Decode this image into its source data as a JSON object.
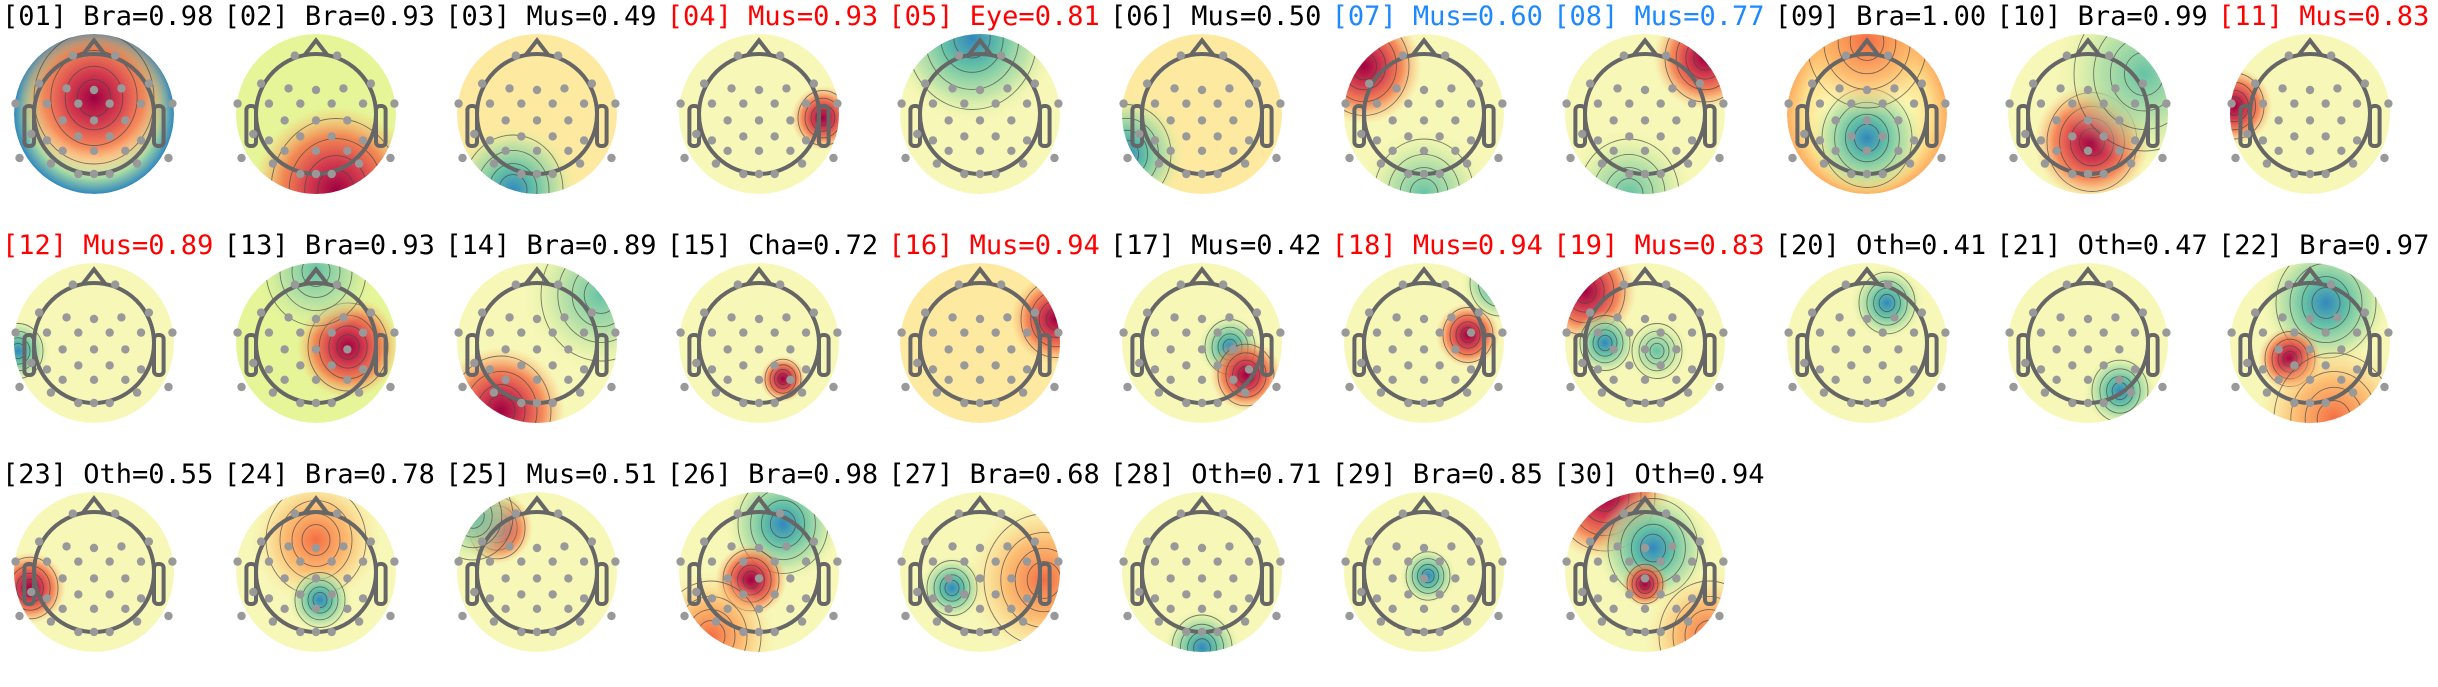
{
  "components": [
    {
      "label": "[01] Bra=0.98",
      "color": "#000000"
    },
    {
      "label": "[02] Bra=0.93",
      "color": "#000000"
    },
    {
      "label": "[03] Mus=0.49",
      "color": "#000000"
    },
    {
      "label": "[04] Mus=0.93",
      "color": "#ff0000"
    },
    {
      "label": "[05] Eye=0.81",
      "color": "#ff0000"
    },
    {
      "label": "[06] Mus=0.50",
      "color": "#000000"
    },
    {
      "label": "[07] Mus=0.60",
      "color": "#1e88ff"
    },
    {
      "label": "[08] Mus=0.77",
      "color": "#1e88ff"
    },
    {
      "label": "[09] Bra=1.00",
      "color": "#000000"
    },
    {
      "label": "[10] Bra=0.99",
      "color": "#000000"
    },
    {
      "label": "[11] Mus=0.83",
      "color": "#ff0000"
    },
    {
      "label": "[12] Mus=0.89",
      "color": "#ff0000"
    },
    {
      "label": "[13] Bra=0.93",
      "color": "#000000"
    },
    {
      "label": "[14] Bra=0.89",
      "color": "#000000"
    },
    {
      "label": "[15] Cha=0.72",
      "color": "#000000"
    },
    {
      "label": "[16] Mus=0.94",
      "color": "#ff0000"
    },
    {
      "label": "[17] Mus=0.42",
      "color": "#000000"
    },
    {
      "label": "[18] Mus=0.94",
      "color": "#ff0000"
    },
    {
      "label": "[19] Mus=0.83",
      "color": "#ff0000"
    },
    {
      "label": "[20] Oth=0.41",
      "color": "#000000"
    },
    {
      "label": "[21] Oth=0.47",
      "color": "#000000"
    },
    {
      "label": "[22] Bra=0.97",
      "color": "#000000"
    },
    {
      "label": "[23] Oth=0.55",
      "color": "#000000"
    },
    {
      "label": "[24] Bra=0.78",
      "color": "#000000"
    },
    {
      "label": "[25] Mus=0.51",
      "color": "#000000"
    },
    {
      "label": "[26] Bra=0.98",
      "color": "#000000"
    },
    {
      "label": "[27] Bra=0.68",
      "color": "#000000"
    },
    {
      "label": "[28] Oth=0.71",
      "color": "#000000"
    },
    {
      "label": "[29] Bra=0.85",
      "color": "#000000"
    },
    {
      "label": "[30] Oth=0.94",
      "color": "#000000"
    }
  ],
  "colormap": [
    "#9e0142",
    "#d53e4f",
    "#f46d43",
    "#fdae61",
    "#fee08b",
    "#ffffbf",
    "#e6f598",
    "#abdda4",
    "#66c2a5",
    "#3288bd",
    "#5e4fa2"
  ],
  "head_color": "#666666",
  "sensor_color": "#999999"
}
